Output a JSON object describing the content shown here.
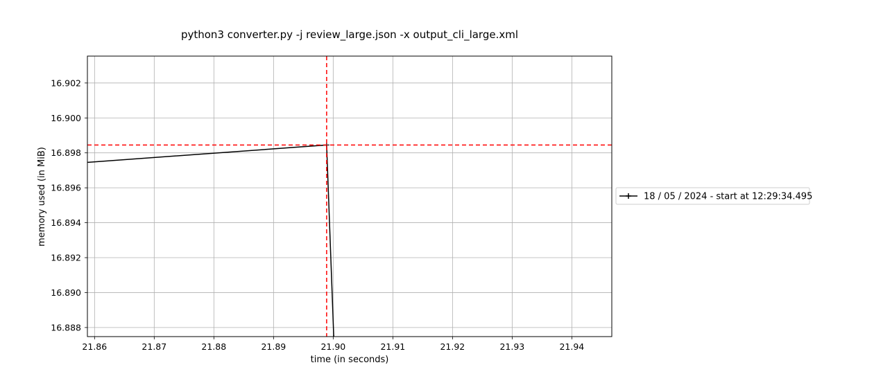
{
  "chart_data": {
    "type": "line",
    "title": "python3 converter.py -j review_large.json -x output_cli_large.xml",
    "xlabel": "time (in seconds)",
    "ylabel": "memory used (in MiB)",
    "xlim": [
      21.8588,
      21.9467
    ],
    "ylim": [
      16.88748,
      16.90354
    ],
    "x_ticks": [
      21.86,
      21.87,
      21.88,
      21.89,
      21.9,
      21.91,
      21.92,
      21.93,
      21.94
    ],
    "x_tick_labels": [
      "21.86",
      "21.87",
      "21.88",
      "21.89",
      "21.90",
      "21.91",
      "21.92",
      "21.93",
      "21.94"
    ],
    "y_ticks": [
      16.888,
      16.89,
      16.892,
      16.894,
      16.896,
      16.898,
      16.9,
      16.902
    ],
    "y_tick_labels": [
      "16.888",
      "16.890",
      "16.892",
      "16.894",
      "16.896",
      "16.898",
      "16.900",
      "16.902"
    ],
    "grid": true,
    "legend_position": "outside-right",
    "series": [
      {
        "name": "18 / 05 / 2024 - start at 12:29:34.495",
        "color": "#000000",
        "marker": "+",
        "x": [
          21.8,
          21.8989,
          21.9001
        ],
        "y": [
          16.896,
          16.89845,
          16.8874
        ]
      }
    ],
    "reference_lines": [
      {
        "orientation": "vertical",
        "x": 21.8989,
        "color": "#ff0000",
        "style": "dashed"
      },
      {
        "orientation": "horizontal",
        "y": 16.89845,
        "color": "#ff0000",
        "style": "dashed"
      }
    ]
  }
}
